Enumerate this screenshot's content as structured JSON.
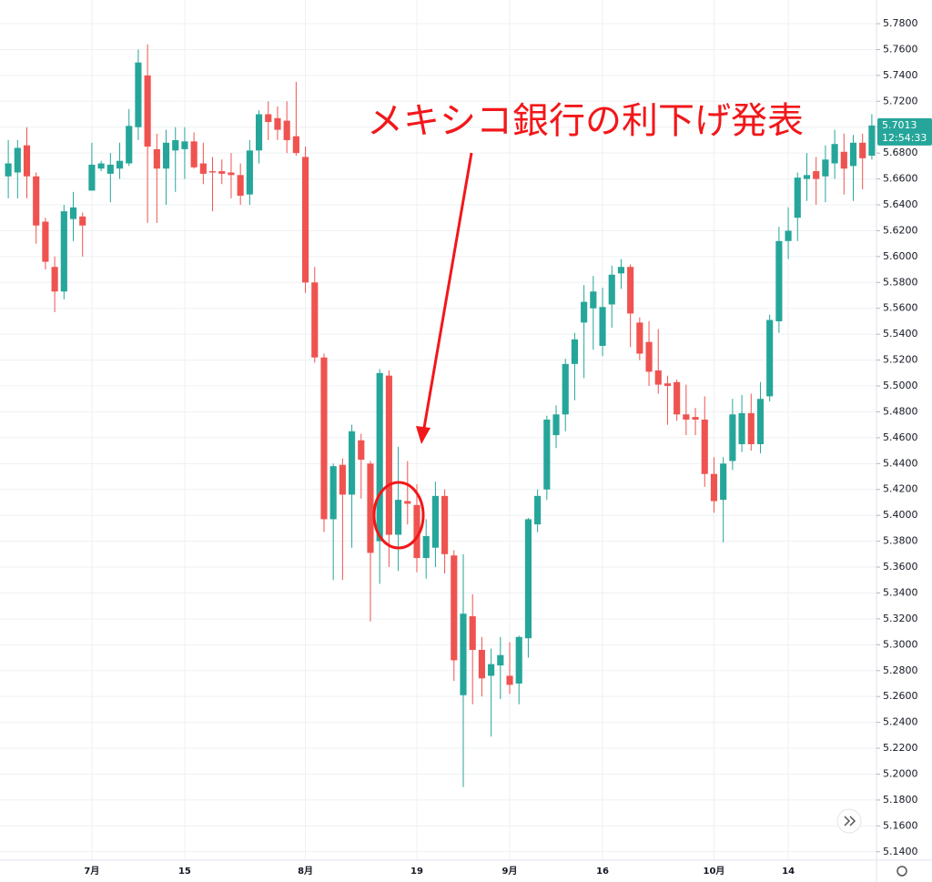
{
  "chart_data": {
    "type": "candlestick",
    "annotation": "メキシコ銀行の利下げ発表",
    "categories": [
      null,
      null,
      null,
      null,
      null,
      null,
      null,
      null,
      null,
      "7月",
      null,
      null,
      null,
      null,
      null,
      null,
      null,
      null,
      null,
      "15",
      null,
      null,
      null,
      null,
      null,
      null,
      null,
      null,
      null,
      null,
      null,
      null,
      "8月",
      null,
      null,
      null,
      null,
      null,
      null,
      null,
      null,
      null,
      null,
      null,
      "19",
      null,
      null,
      null,
      null,
      null,
      null,
      null,
      null,
      null,
      "9月",
      null,
      null,
      null,
      null,
      null,
      null,
      null,
      null,
      null,
      "16",
      null,
      null,
      null,
      null,
      null,
      null,
      null,
      null,
      null,
      null,
      null,
      "10月",
      null,
      null,
      null,
      null,
      null,
      null,
      null,
      "14",
      null,
      null,
      null,
      null,
      null,
      null,
      null,
      null,
      null
    ],
    "open": [
      5.662,
      5.665,
      5.686,
      5.662,
      5.627,
      5.592,
      5.573,
      5.629,
      5.631,
      5.651,
      5.668,
      5.664,
      5.668,
      5.672,
      5.7,
      5.74,
      5.683,
      5.668,
      5.682,
      5.683,
      5.689,
      5.672,
      5.666,
      5.666,
      5.665,
      5.663,
      5.648,
      5.682,
      5.71,
      5.707,
      5.705,
      5.693,
      5.677,
      5.58,
      5.522,
      5.397,
      5.439,
      5.416,
      5.458,
      5.44,
      5.38,
      5.508,
      5.385,
      5.411,
      5.408,
      5.367,
      5.375,
      5.415,
      5.369,
      5.261,
      5.322,
      5.296,
      5.276,
      5.284,
      5.276,
      5.27,
      5.305,
      5.393,
      5.42,
      5.462,
      5.478,
      5.517,
      5.549,
      5.56,
      5.531,
      5.563,
      5.587,
      5.592,
      5.549,
      5.534,
      5.512,
      5.502,
      5.503,
      5.478,
      5.476,
      5.474,
      5.432,
      5.412,
      5.442,
      5.455,
      5.479,
      5.455,
      5.492,
      5.55,
      5.612,
      5.63,
      5.66,
      5.666,
      5.662,
      5.672,
      5.681,
      5.67,
      5.688,
      5.678
    ],
    "high": [
      5.69,
      5.69,
      5.7,
      5.665,
      5.63,
      5.6,
      5.64,
      5.65,
      5.634,
      5.688,
      5.674,
      5.68,
      5.688,
      5.714,
      5.76,
      5.764,
      5.695,
      5.698,
      5.7,
      5.7,
      5.696,
      5.688,
      5.677,
      5.675,
      5.68,
      5.672,
      5.69,
      5.713,
      5.72,
      5.716,
      5.72,
      5.735,
      5.685,
      5.592,
      5.525,
      5.44,
      5.444,
      5.47,
      5.463,
      5.442,
      5.513,
      5.512,
      5.453,
      5.442,
      5.424,
      5.397,
      5.426,
      5.42,
      5.373,
      5.37,
      5.339,
      5.306,
      5.297,
      5.306,
      5.302,
      5.307,
      5.398,
      5.42,
      5.477,
      5.485,
      5.521,
      5.541,
      5.578,
      5.585,
      5.576,
      5.593,
      5.598,
      5.594,
      5.553,
      5.55,
      5.544,
      5.508,
      5.505,
      5.501,
      5.483,
      5.492,
      5.445,
      5.445,
      5.49,
      5.493,
      5.494,
      5.503,
      5.555,
      5.623,
      5.638,
      5.665,
      5.68,
      5.677,
      5.686,
      5.698,
      5.695,
      5.694,
      5.695,
      5.71
    ],
    "low": [
      5.645,
      5.645,
      5.645,
      5.61,
      5.59,
      5.557,
      5.567,
      5.612,
      5.6,
      5.651,
      5.666,
      5.642,
      5.66,
      5.67,
      5.69,
      5.626,
      5.626,
      5.64,
      5.65,
      5.66,
      5.668,
      5.656,
      5.635,
      5.656,
      5.645,
      5.64,
      5.64,
      5.672,
      5.69,
      5.69,
      5.68,
      5.678,
      5.572,
      5.518,
      5.387,
      5.35,
      5.35,
      5.375,
      5.413,
      5.318,
      5.347,
      5.36,
      5.357,
      5.393,
      5.356,
      5.351,
      5.36,
      5.355,
      5.272,
      5.19,
      5.254,
      5.26,
      5.229,
      5.258,
      5.262,
      5.254,
      5.29,
      5.387,
      5.412,
      5.452,
      5.465,
      5.489,
      5.506,
      5.528,
      5.523,
      5.545,
      5.575,
      5.53,
      5.52,
      5.5,
      5.494,
      5.47,
      5.473,
      5.462,
      5.462,
      5.422,
      5.402,
      5.379,
      5.435,
      5.449,
      5.45,
      5.448,
      5.488,
      5.541,
      5.598,
      5.612,
      5.643,
      5.64,
      5.642,
      5.66,
      5.648,
      5.643,
      5.652,
      5.675
    ],
    "close": [
      5.672,
      5.684,
      5.662,
      5.624,
      5.596,
      5.573,
      5.635,
      5.638,
      5.624,
      5.671,
      5.672,
      5.671,
      5.674,
      5.701,
      5.75,
      5.685,
      5.668,
      5.688,
      5.69,
      5.689,
      5.669,
      5.664,
      5.665,
      5.664,
      5.663,
      5.647,
      5.682,
      5.71,
      5.704,
      5.698,
      5.69,
      5.68,
      5.58,
      5.522,
      5.397,
      5.438,
      5.416,
      5.465,
      5.443,
      5.371,
      5.51,
      5.385,
      5.412,
      5.409,
      5.367,
      5.384,
      5.415,
      5.37,
      5.288,
      5.324,
      5.296,
      5.274,
      5.285,
      5.292,
      5.269,
      5.306,
      5.397,
      5.415,
      5.474,
      5.478,
      5.517,
      5.536,
      5.565,
      5.573,
      5.561,
      5.586,
      5.592,
      5.556,
      5.525,
      5.511,
      5.501,
      5.5,
      5.478,
      5.474,
      5.474,
      5.432,
      5.411,
      5.44,
      5.478,
      5.479,
      5.455,
      5.49,
      5.551,
      5.612,
      5.62,
      5.661,
      5.663,
      5.66,
      5.675,
      5.687,
      5.668,
      5.688,
      5.676,
      5.7013
    ],
    "up_color": "#26a69a",
    "down_color": "#ef5350",
    "ylim": [
      5.1335,
      5.7983
    ],
    "yticks": [
      {
        "value": 5.14,
        "label": "5.1400"
      },
      {
        "value": 5.16,
        "label": "5.1600"
      },
      {
        "value": 5.18,
        "label": "5.1800"
      },
      {
        "value": 5.2,
        "label": "5.2000"
      },
      {
        "value": 5.22,
        "label": "5.2200"
      },
      {
        "value": 5.24,
        "label": "5.2400"
      },
      {
        "value": 5.26,
        "label": "5.2600"
      },
      {
        "value": 5.28,
        "label": "5.2800"
      },
      {
        "value": 5.3,
        "label": "5.3000"
      },
      {
        "value": 5.32,
        "label": "5.3200"
      },
      {
        "value": 5.34,
        "label": "5.3400"
      },
      {
        "value": 5.36,
        "label": "5.3600"
      },
      {
        "value": 5.38,
        "label": "5.3800"
      },
      {
        "value": 5.4,
        "label": "5.4000"
      },
      {
        "value": 5.42,
        "label": "5.4200"
      },
      {
        "value": 5.44,
        "label": "5.4400"
      },
      {
        "value": 5.46,
        "label": "5.4600"
      },
      {
        "value": 5.48,
        "label": "5.4800"
      },
      {
        "value": 5.5,
        "label": "5.5000"
      },
      {
        "value": 5.52,
        "label": "5.5200"
      },
      {
        "value": 5.54,
        "label": "5.5400"
      },
      {
        "value": 5.56,
        "label": "5.5600"
      },
      {
        "value": 5.58,
        "label": "5.5800"
      },
      {
        "value": 5.6,
        "label": "5.6000"
      },
      {
        "value": 5.62,
        "label": "5.6200"
      },
      {
        "value": 5.64,
        "label": "5.6400"
      },
      {
        "value": 5.66,
        "label": "5.6600"
      },
      {
        "value": 5.68,
        "label": "5.6800"
      },
      {
        "value": 5.7,
        "label": "5.7000"
      },
      {
        "value": 5.72,
        "label": "5.7200"
      },
      {
        "value": 5.74,
        "label": "5.7400"
      },
      {
        "value": 5.76,
        "label": "5.7600"
      },
      {
        "value": 5.78,
        "label": "5.7800"
      }
    ],
    "last_price": 5.7013,
    "countdown": "12:54:33",
    "grid": true
  }
}
